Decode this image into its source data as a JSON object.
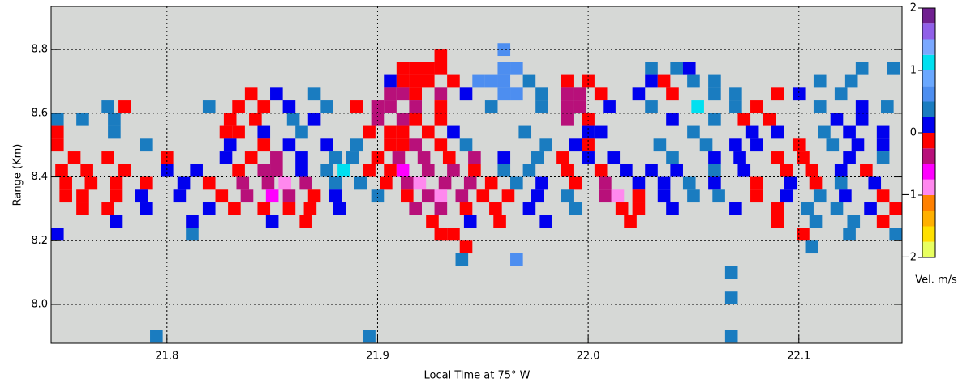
{
  "chart_data": {
    "type": "heatmap",
    "xlabel": "Local Time at 75° W",
    "ylabel": "Range (Km)",
    "xlim": [
      21.745,
      22.149
    ],
    "ylim": [
      7.878,
      8.935
    ],
    "xticks": [
      21.8,
      21.9,
      {
        "value": 22.0,
        "label": "22.0"
      },
      22.1
    ],
    "yticks": [
      {
        "value": 8.0,
        "label": "8.0"
      },
      8.2,
      8.4,
      8.6,
      8.8
    ],
    "grid": true,
    "colorbar": {
      "label": "Vel. m/s",
      "ticks": [
        2,
        1,
        0,
        {
          "value": -1,
          "label": "−1"
        },
        {
          "value": -2,
          "label": "−2"
        }
      ]
    },
    "colormap": {
      "bounds": [
        -2,
        -1.75,
        -1.5,
        -1.25,
        -1,
        -0.75,
        -0.5,
        -0.25,
        0,
        0.25,
        0.5,
        0.75,
        1,
        1.25,
        1.5,
        1.75,
        2
      ],
      "colors": [
        "#e8ff60",
        "#ffe000",
        "#ffb000",
        "#ff8000",
        "#ff88ee",
        "#ff00ff",
        "#b8107a",
        "#ff0000",
        "#0000ee",
        "#1a7cc0",
        "#4d8ef0",
        "#6aa8ff",
        "#00e0f0",
        "#7aa8ff",
        "#9060e8",
        "#702090"
      ]
    },
    "cells": [
      [
        21.93,
        8.78,
        -0.1
      ],
      [
        21.96,
        8.8,
        0.6
      ],
      [
        21.912,
        8.74,
        -0.1
      ],
      [
        21.918,
        8.74,
        -0.1
      ],
      [
        21.924,
        8.74,
        -0.1
      ],
      [
        21.93,
        8.74,
        -0.1
      ],
      [
        21.96,
        8.74,
        0.6
      ],
      [
        21.966,
        8.74,
        0.6
      ],
      [
        22.03,
        8.74,
        0.4
      ],
      [
        22.042,
        8.74,
        0.4
      ],
      [
        22.048,
        8.74,
        0.1
      ],
      [
        22.13,
        8.74,
        0.4
      ],
      [
        22.145,
        8.74,
        0.4
      ],
      [
        21.906,
        8.7,
        0.1
      ],
      [
        21.912,
        8.7,
        -0.1
      ],
      [
        21.918,
        8.7,
        -0.1
      ],
      [
        21.924,
        8.7,
        -0.1
      ],
      [
        21.936,
        8.7,
        -0.1
      ],
      [
        21.948,
        8.7,
        0.6
      ],
      [
        21.954,
        8.7,
        0.6
      ],
      [
        21.96,
        8.7,
        0.6
      ],
      [
        21.972,
        8.7,
        0.4
      ],
      [
        21.99,
        8.7,
        -0.1
      ],
      [
        22.0,
        8.7,
        -0.1
      ],
      [
        22.03,
        8.7,
        0.1
      ],
      [
        22.036,
        8.7,
        -0.1
      ],
      [
        22.05,
        8.7,
        0.4
      ],
      [
        22.06,
        8.7,
        0.4
      ],
      [
        22.11,
        8.7,
        0.4
      ],
      [
        22.125,
        8.7,
        0.4
      ],
      [
        21.84,
        8.66,
        -0.1
      ],
      [
        21.852,
        8.66,
        0.1
      ],
      [
        21.87,
        8.66,
        0.4
      ],
      [
        21.906,
        8.66,
        -0.4
      ],
      [
        21.912,
        8.66,
        -0.4
      ],
      [
        21.918,
        8.66,
        -0.1
      ],
      [
        21.93,
        8.66,
        -0.4
      ],
      [
        21.942,
        8.66,
        0.1
      ],
      [
        21.96,
        8.66,
        0.6
      ],
      [
        21.966,
        8.66,
        0.6
      ],
      [
        21.978,
        8.66,
        0.4
      ],
      [
        21.99,
        8.66,
        -0.4
      ],
      [
        21.996,
        8.66,
        -0.4
      ],
      [
        22.006,
        8.66,
        -0.1
      ],
      [
        22.024,
        8.66,
        0.1
      ],
      [
        22.04,
        8.66,
        -0.1
      ],
      [
        22.06,
        8.66,
        0.4
      ],
      [
        22.07,
        8.66,
        0.4
      ],
      [
        22.09,
        8.66,
        -0.1
      ],
      [
        22.1,
        8.66,
        0.1
      ],
      [
        22.12,
        8.66,
        0.4
      ],
      [
        21.772,
        8.62,
        0.4
      ],
      [
        21.78,
        8.62,
        -0.1
      ],
      [
        21.82,
        8.62,
        0.4
      ],
      [
        21.834,
        8.62,
        -0.1
      ],
      [
        21.846,
        8.62,
        -0.1
      ],
      [
        21.858,
        8.62,
        0.1
      ],
      [
        21.876,
        8.62,
        0.4
      ],
      [
        21.89,
        8.62,
        -0.1
      ],
      [
        21.9,
        8.62,
        -0.4
      ],
      [
        21.906,
        8.62,
        -0.4
      ],
      [
        21.918,
        8.62,
        -0.4
      ],
      [
        21.93,
        8.62,
        -0.1
      ],
      [
        21.954,
        8.62,
        0.4
      ],
      [
        21.978,
        8.62,
        0.4
      ],
      [
        21.99,
        8.62,
        -0.4
      ],
      [
        21.996,
        8.62,
        -0.4
      ],
      [
        22.01,
        8.62,
        0.1
      ],
      [
        22.03,
        8.62,
        0.4
      ],
      [
        22.052,
        8.62,
        1.1
      ],
      [
        22.07,
        8.62,
        0.4
      ],
      [
        22.08,
        8.62,
        -0.1
      ],
      [
        22.11,
        8.62,
        0.4
      ],
      [
        22.13,
        8.62,
        0.1
      ],
      [
        22.142,
        8.62,
        0.4
      ],
      [
        21.748,
        8.58,
        0.4
      ],
      [
        21.76,
        8.58,
        0.4
      ],
      [
        21.775,
        8.58,
        0.4
      ],
      [
        21.83,
        8.58,
        -0.1
      ],
      [
        21.842,
        8.58,
        -0.1
      ],
      [
        21.86,
        8.58,
        0.4
      ],
      [
        21.87,
        8.58,
        0.1
      ],
      [
        21.9,
        8.58,
        -0.4
      ],
      [
        21.912,
        8.58,
        -0.4
      ],
      [
        21.918,
        8.58,
        -0.1
      ],
      [
        21.93,
        8.58,
        -0.1
      ],
      [
        21.99,
        8.58,
        -0.4
      ],
      [
        22.0,
        8.58,
        -0.1
      ],
      [
        22.04,
        8.58,
        0.1
      ],
      [
        22.06,
        8.58,
        0.4
      ],
      [
        22.074,
        8.58,
        -0.1
      ],
      [
        22.086,
        8.58,
        -0.1
      ],
      [
        22.118,
        8.58,
        0.1
      ],
      [
        22.13,
        8.58,
        0.1
      ],
      [
        21.748,
        8.54,
        -0.1
      ],
      [
        21.775,
        8.54,
        0.4
      ],
      [
        21.828,
        8.54,
        -0.1
      ],
      [
        21.834,
        8.54,
        -0.1
      ],
      [
        21.846,
        8.54,
        0.1
      ],
      [
        21.864,
        8.54,
        0.4
      ],
      [
        21.896,
        8.54,
        -0.1
      ],
      [
        21.906,
        8.54,
        -0.1
      ],
      [
        21.912,
        8.54,
        -0.1
      ],
      [
        21.924,
        8.54,
        -0.1
      ],
      [
        21.936,
        8.54,
        0.1
      ],
      [
        21.97,
        8.54,
        0.4
      ],
      [
        22.0,
        8.54,
        0.1
      ],
      [
        22.006,
        8.54,
        0.1
      ],
      [
        22.05,
        8.54,
        0.4
      ],
      [
        22.078,
        8.54,
        0.1
      ],
      [
        22.09,
        8.54,
        0.1
      ],
      [
        22.112,
        8.54,
        0.4
      ],
      [
        22.124,
        8.54,
        0.1
      ],
      [
        22.14,
        8.54,
        0.1
      ],
      [
        21.748,
        8.5,
        -0.1
      ],
      [
        21.79,
        8.5,
        0.4
      ],
      [
        21.83,
        8.5,
        0.1
      ],
      [
        21.846,
        8.5,
        -0.1
      ],
      [
        21.858,
        8.5,
        0.1
      ],
      [
        21.876,
        8.5,
        0.1
      ],
      [
        21.89,
        8.5,
        0.4
      ],
      [
        21.906,
        8.5,
        -0.1
      ],
      [
        21.912,
        8.5,
        -0.1
      ],
      [
        21.918,
        8.5,
        -0.4
      ],
      [
        21.93,
        8.5,
        -0.1
      ],
      [
        21.942,
        8.5,
        0.4
      ],
      [
        21.98,
        8.5,
        0.4
      ],
      [
        21.994,
        8.5,
        0.1
      ],
      [
        22.0,
        8.5,
        -0.1
      ],
      [
        22.034,
        8.5,
        0.4
      ],
      [
        22.056,
        8.5,
        0.4
      ],
      [
        22.07,
        8.5,
        0.1
      ],
      [
        22.08,
        8.5,
        0.1
      ],
      [
        22.1,
        8.5,
        -0.1
      ],
      [
        22.116,
        8.5,
        0.4
      ],
      [
        22.128,
        8.5,
        0.1
      ],
      [
        22.14,
        8.5,
        0.1
      ],
      [
        21.756,
        8.46,
        -0.1
      ],
      [
        21.772,
        8.46,
        -0.1
      ],
      [
        21.8,
        8.46,
        -0.1
      ],
      [
        21.828,
        8.46,
        0.1
      ],
      [
        21.84,
        8.46,
        -0.1
      ],
      [
        21.852,
        8.46,
        -0.4
      ],
      [
        21.864,
        8.46,
        0.1
      ],
      [
        21.88,
        8.46,
        0.4
      ],
      [
        21.888,
        8.46,
        0.4
      ],
      [
        21.9,
        8.46,
        -0.1
      ],
      [
        21.91,
        8.46,
        -0.4
      ],
      [
        21.922,
        8.46,
        -0.4
      ],
      [
        21.934,
        8.46,
        -0.1
      ],
      [
        21.946,
        8.46,
        -0.4
      ],
      [
        21.96,
        8.46,
        0.1
      ],
      [
        21.976,
        8.46,
        0.4
      ],
      [
        21.988,
        8.46,
        -0.1
      ],
      [
        22.0,
        8.46,
        0.1
      ],
      [
        22.012,
        8.46,
        0.1
      ],
      [
        22.04,
        8.46,
        0.4
      ],
      [
        22.06,
        8.46,
        0.1
      ],
      [
        22.072,
        8.46,
        0.1
      ],
      [
        22.09,
        8.46,
        -0.1
      ],
      [
        22.102,
        8.46,
        -0.1
      ],
      [
        22.124,
        8.46,
        0.1
      ],
      [
        22.14,
        8.46,
        0.4
      ],
      [
        21.75,
        8.42,
        -0.1
      ],
      [
        21.762,
        8.42,
        -0.1
      ],
      [
        21.78,
        8.42,
        -0.1
      ],
      [
        21.8,
        8.42,
        0.1
      ],
      [
        21.814,
        8.42,
        0.1
      ],
      [
        21.834,
        8.42,
        -0.1
      ],
      [
        21.846,
        8.42,
        -0.4
      ],
      [
        21.852,
        8.42,
        -0.4
      ],
      [
        21.864,
        8.42,
        0.1
      ],
      [
        21.876,
        8.42,
        0.4
      ],
      [
        21.884,
        8.42,
        1.1
      ],
      [
        21.896,
        8.42,
        -0.1
      ],
      [
        21.906,
        8.42,
        -0.1
      ],
      [
        21.912,
        8.42,
        -0.6
      ],
      [
        21.924,
        8.42,
        -0.4
      ],
      [
        21.936,
        8.42,
        -0.4
      ],
      [
        21.946,
        8.42,
        -0.1
      ],
      [
        21.96,
        8.42,
        0.4
      ],
      [
        21.972,
        8.42,
        0.4
      ],
      [
        21.99,
        8.42,
        -0.1
      ],
      [
        22.006,
        8.42,
        -0.1
      ],
      [
        22.018,
        8.42,
        0.1
      ],
      [
        22.03,
        8.42,
        0.1
      ],
      [
        22.042,
        8.42,
        0.1
      ],
      [
        22.06,
        8.42,
        0.4
      ],
      [
        22.074,
        8.42,
        0.1
      ],
      [
        22.094,
        8.42,
        -0.1
      ],
      [
        22.106,
        8.42,
        -0.1
      ],
      [
        22.12,
        8.42,
        0.1
      ],
      [
        22.132,
        8.42,
        -0.1
      ],
      [
        21.752,
        8.38,
        -0.1
      ],
      [
        21.764,
        8.38,
        -0.1
      ],
      [
        21.776,
        8.38,
        -0.1
      ],
      [
        21.79,
        8.38,
        -0.1
      ],
      [
        21.808,
        8.38,
        0.1
      ],
      [
        21.82,
        8.38,
        -0.1
      ],
      [
        21.836,
        8.38,
        -0.4
      ],
      [
        21.848,
        8.38,
        -0.4
      ],
      [
        21.856,
        8.38,
        -0.9
      ],
      [
        21.866,
        8.38,
        -0.4
      ],
      [
        21.88,
        8.38,
        0.4
      ],
      [
        21.892,
        8.38,
        0.4
      ],
      [
        21.904,
        8.38,
        -0.1
      ],
      [
        21.914,
        8.38,
        -0.4
      ],
      [
        21.92,
        8.38,
        -0.9
      ],
      [
        21.932,
        8.38,
        -0.4
      ],
      [
        21.944,
        8.38,
        -0.4
      ],
      [
        21.954,
        8.38,
        -0.1
      ],
      [
        21.966,
        8.38,
        0.4
      ],
      [
        21.978,
        8.38,
        0.1
      ],
      [
        21.994,
        8.38,
        -0.1
      ],
      [
        22.008,
        8.38,
        -0.4
      ],
      [
        22.024,
        8.38,
        0.1
      ],
      [
        22.036,
        8.38,
        0.1
      ],
      [
        22.048,
        8.38,
        0.4
      ],
      [
        22.06,
        8.38,
        0.1
      ],
      [
        22.08,
        8.38,
        -0.1
      ],
      [
        22.096,
        8.38,
        0.1
      ],
      [
        22.108,
        8.38,
        -0.1
      ],
      [
        22.12,
        8.38,
        0.4
      ],
      [
        22.136,
        8.38,
        0.1
      ],
      [
        21.752,
        8.34,
        -0.1
      ],
      [
        21.76,
        8.34,
        -0.1
      ],
      [
        21.776,
        8.34,
        -0.1
      ],
      [
        21.788,
        8.34,
        0.1
      ],
      [
        21.806,
        8.34,
        0.1
      ],
      [
        21.826,
        8.34,
        -0.1
      ],
      [
        21.838,
        8.34,
        -0.4
      ],
      [
        21.85,
        8.34,
        -0.6
      ],
      [
        21.858,
        8.34,
        -0.4
      ],
      [
        21.87,
        8.34,
        -0.1
      ],
      [
        21.88,
        8.34,
        0.1
      ],
      [
        21.9,
        8.34,
        0.4
      ],
      [
        21.914,
        8.34,
        -0.1
      ],
      [
        21.924,
        8.34,
        -0.4
      ],
      [
        21.93,
        8.34,
        -0.9
      ],
      [
        21.94,
        8.34,
        -0.4
      ],
      [
        21.95,
        8.34,
        -0.1
      ],
      [
        21.962,
        8.34,
        -0.1
      ],
      [
        21.976,
        8.34,
        0.1
      ],
      [
        21.99,
        8.34,
        0.4
      ],
      [
        22.008,
        8.34,
        -0.4
      ],
      [
        22.014,
        8.34,
        -0.9
      ],
      [
        22.024,
        8.34,
        -0.1
      ],
      [
        22.036,
        8.34,
        0.1
      ],
      [
        22.05,
        8.34,
        0.4
      ],
      [
        22.062,
        8.34,
        0.4
      ],
      [
        22.08,
        8.34,
        -0.1
      ],
      [
        22.094,
        8.34,
        0.1
      ],
      [
        22.11,
        8.34,
        0.4
      ],
      [
        22.122,
        8.34,
        0.1
      ],
      [
        22.14,
        8.34,
        -0.1
      ],
      [
        21.76,
        8.3,
        -0.1
      ],
      [
        21.772,
        8.3,
        -0.1
      ],
      [
        21.79,
        8.3,
        0.1
      ],
      [
        21.82,
        8.3,
        0.1
      ],
      [
        21.832,
        8.3,
        -0.1
      ],
      [
        21.846,
        8.3,
        -0.1
      ],
      [
        21.858,
        8.3,
        -0.1
      ],
      [
        21.868,
        8.3,
        -0.1
      ],
      [
        21.882,
        8.3,
        0.1
      ],
      [
        21.918,
        8.3,
        -0.4
      ],
      [
        21.93,
        8.3,
        -0.4
      ],
      [
        21.942,
        8.3,
        -0.1
      ],
      [
        21.956,
        8.3,
        -0.1
      ],
      [
        21.972,
        8.3,
        0.1
      ],
      [
        21.994,
        8.3,
        0.4
      ],
      [
        22.016,
        8.3,
        -0.1
      ],
      [
        22.024,
        8.3,
        -0.1
      ],
      [
        22.04,
        8.3,
        0.1
      ],
      [
        22.07,
        8.3,
        0.1
      ],
      [
        22.09,
        8.3,
        -0.1
      ],
      [
        22.104,
        8.3,
        0.4
      ],
      [
        22.118,
        8.3,
        0.4
      ],
      [
        22.134,
        8.3,
        0.1
      ],
      [
        22.146,
        8.3,
        -0.1
      ],
      [
        21.776,
        8.26,
        0.1
      ],
      [
        21.812,
        8.26,
        0.1
      ],
      [
        21.85,
        8.26,
        0.1
      ],
      [
        21.866,
        8.26,
        -0.1
      ],
      [
        21.926,
        8.26,
        -0.1
      ],
      [
        21.944,
        8.26,
        0.1
      ],
      [
        21.958,
        8.26,
        -0.1
      ],
      [
        21.98,
        8.26,
        0.1
      ],
      [
        22.02,
        8.26,
        -0.1
      ],
      [
        22.09,
        8.26,
        -0.1
      ],
      [
        22.108,
        8.26,
        0.4
      ],
      [
        22.126,
        8.26,
        0.4
      ],
      [
        22.14,
        8.26,
        -0.1
      ],
      [
        21.748,
        8.22,
        0.1
      ],
      [
        21.812,
        8.22,
        0.4
      ],
      [
        21.93,
        8.22,
        -0.1
      ],
      [
        21.936,
        8.22,
        -0.1
      ],
      [
        22.102,
        8.22,
        -0.1
      ],
      [
        22.124,
        8.22,
        0.4
      ],
      [
        22.146,
        8.22,
        0.4
      ],
      [
        21.942,
        8.18,
        -0.1
      ],
      [
        22.106,
        8.18,
        0.4
      ],
      [
        21.94,
        8.14,
        0.4
      ],
      [
        21.966,
        8.14,
        0.6
      ],
      [
        22.068,
        8.1,
        0.4
      ],
      [
        22.068,
        8.02,
        0.4
      ],
      [
        21.795,
        7.9,
        0.4
      ],
      [
        21.896,
        7.9,
        0.4
      ],
      [
        22.068,
        7.9,
        0.4
      ]
    ]
  }
}
